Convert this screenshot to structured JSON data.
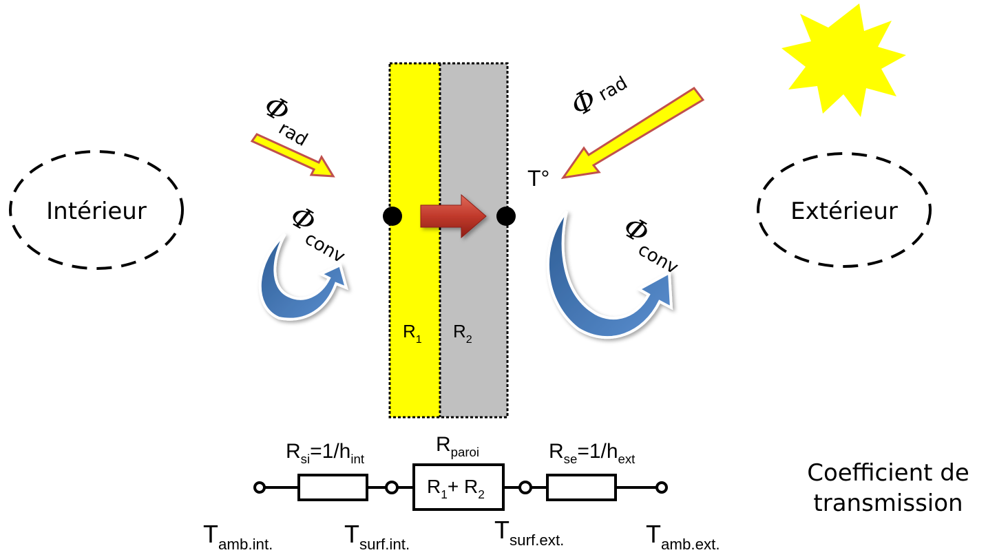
{
  "zones": {
    "interior": "Intérieur",
    "exterior": "Extérieur"
  },
  "flux": {
    "symbol": "Φ",
    "rad_sub": "rad",
    "conv_sub": "conv"
  },
  "temperature_mark": "T°",
  "wall": {
    "layer1": {
      "label": "R",
      "sub": "1",
      "color": "#ffff00"
    },
    "layer2": {
      "label": "R",
      "sub": "2",
      "color": "#c0c0c0"
    }
  },
  "circuit": {
    "rsi": {
      "main": "R",
      "sub": "si",
      "eq": "=1/h",
      "eq_sub": "int"
    },
    "rparoi": {
      "main": "R",
      "sub": "paroi"
    },
    "rse": {
      "main": "R",
      "sub": "se",
      "eq": "=1/h",
      "eq_sub": "ext"
    },
    "center_box": {
      "r1": "R",
      "s1": "1",
      "plus": "+ R",
      "s2": "2"
    },
    "nodes": [
      {
        "main": "T",
        "sub": "amb.int."
      },
      {
        "main": "T",
        "sub": "surf.int."
      },
      {
        "main": "T",
        "sub": "surf.ext."
      },
      {
        "main": "T",
        "sub": "amb.ext."
      }
    ]
  },
  "caption": {
    "line1": "Coefficient de",
    "line2": "transmission"
  },
  "colors": {
    "sun": "#ffff00",
    "arrow_red": "#c0392b",
    "arrow_blue": "#4f81bd",
    "rad_arrow_fill": "#ffff00",
    "rad_arrow_stroke": "#c0504d"
  }
}
